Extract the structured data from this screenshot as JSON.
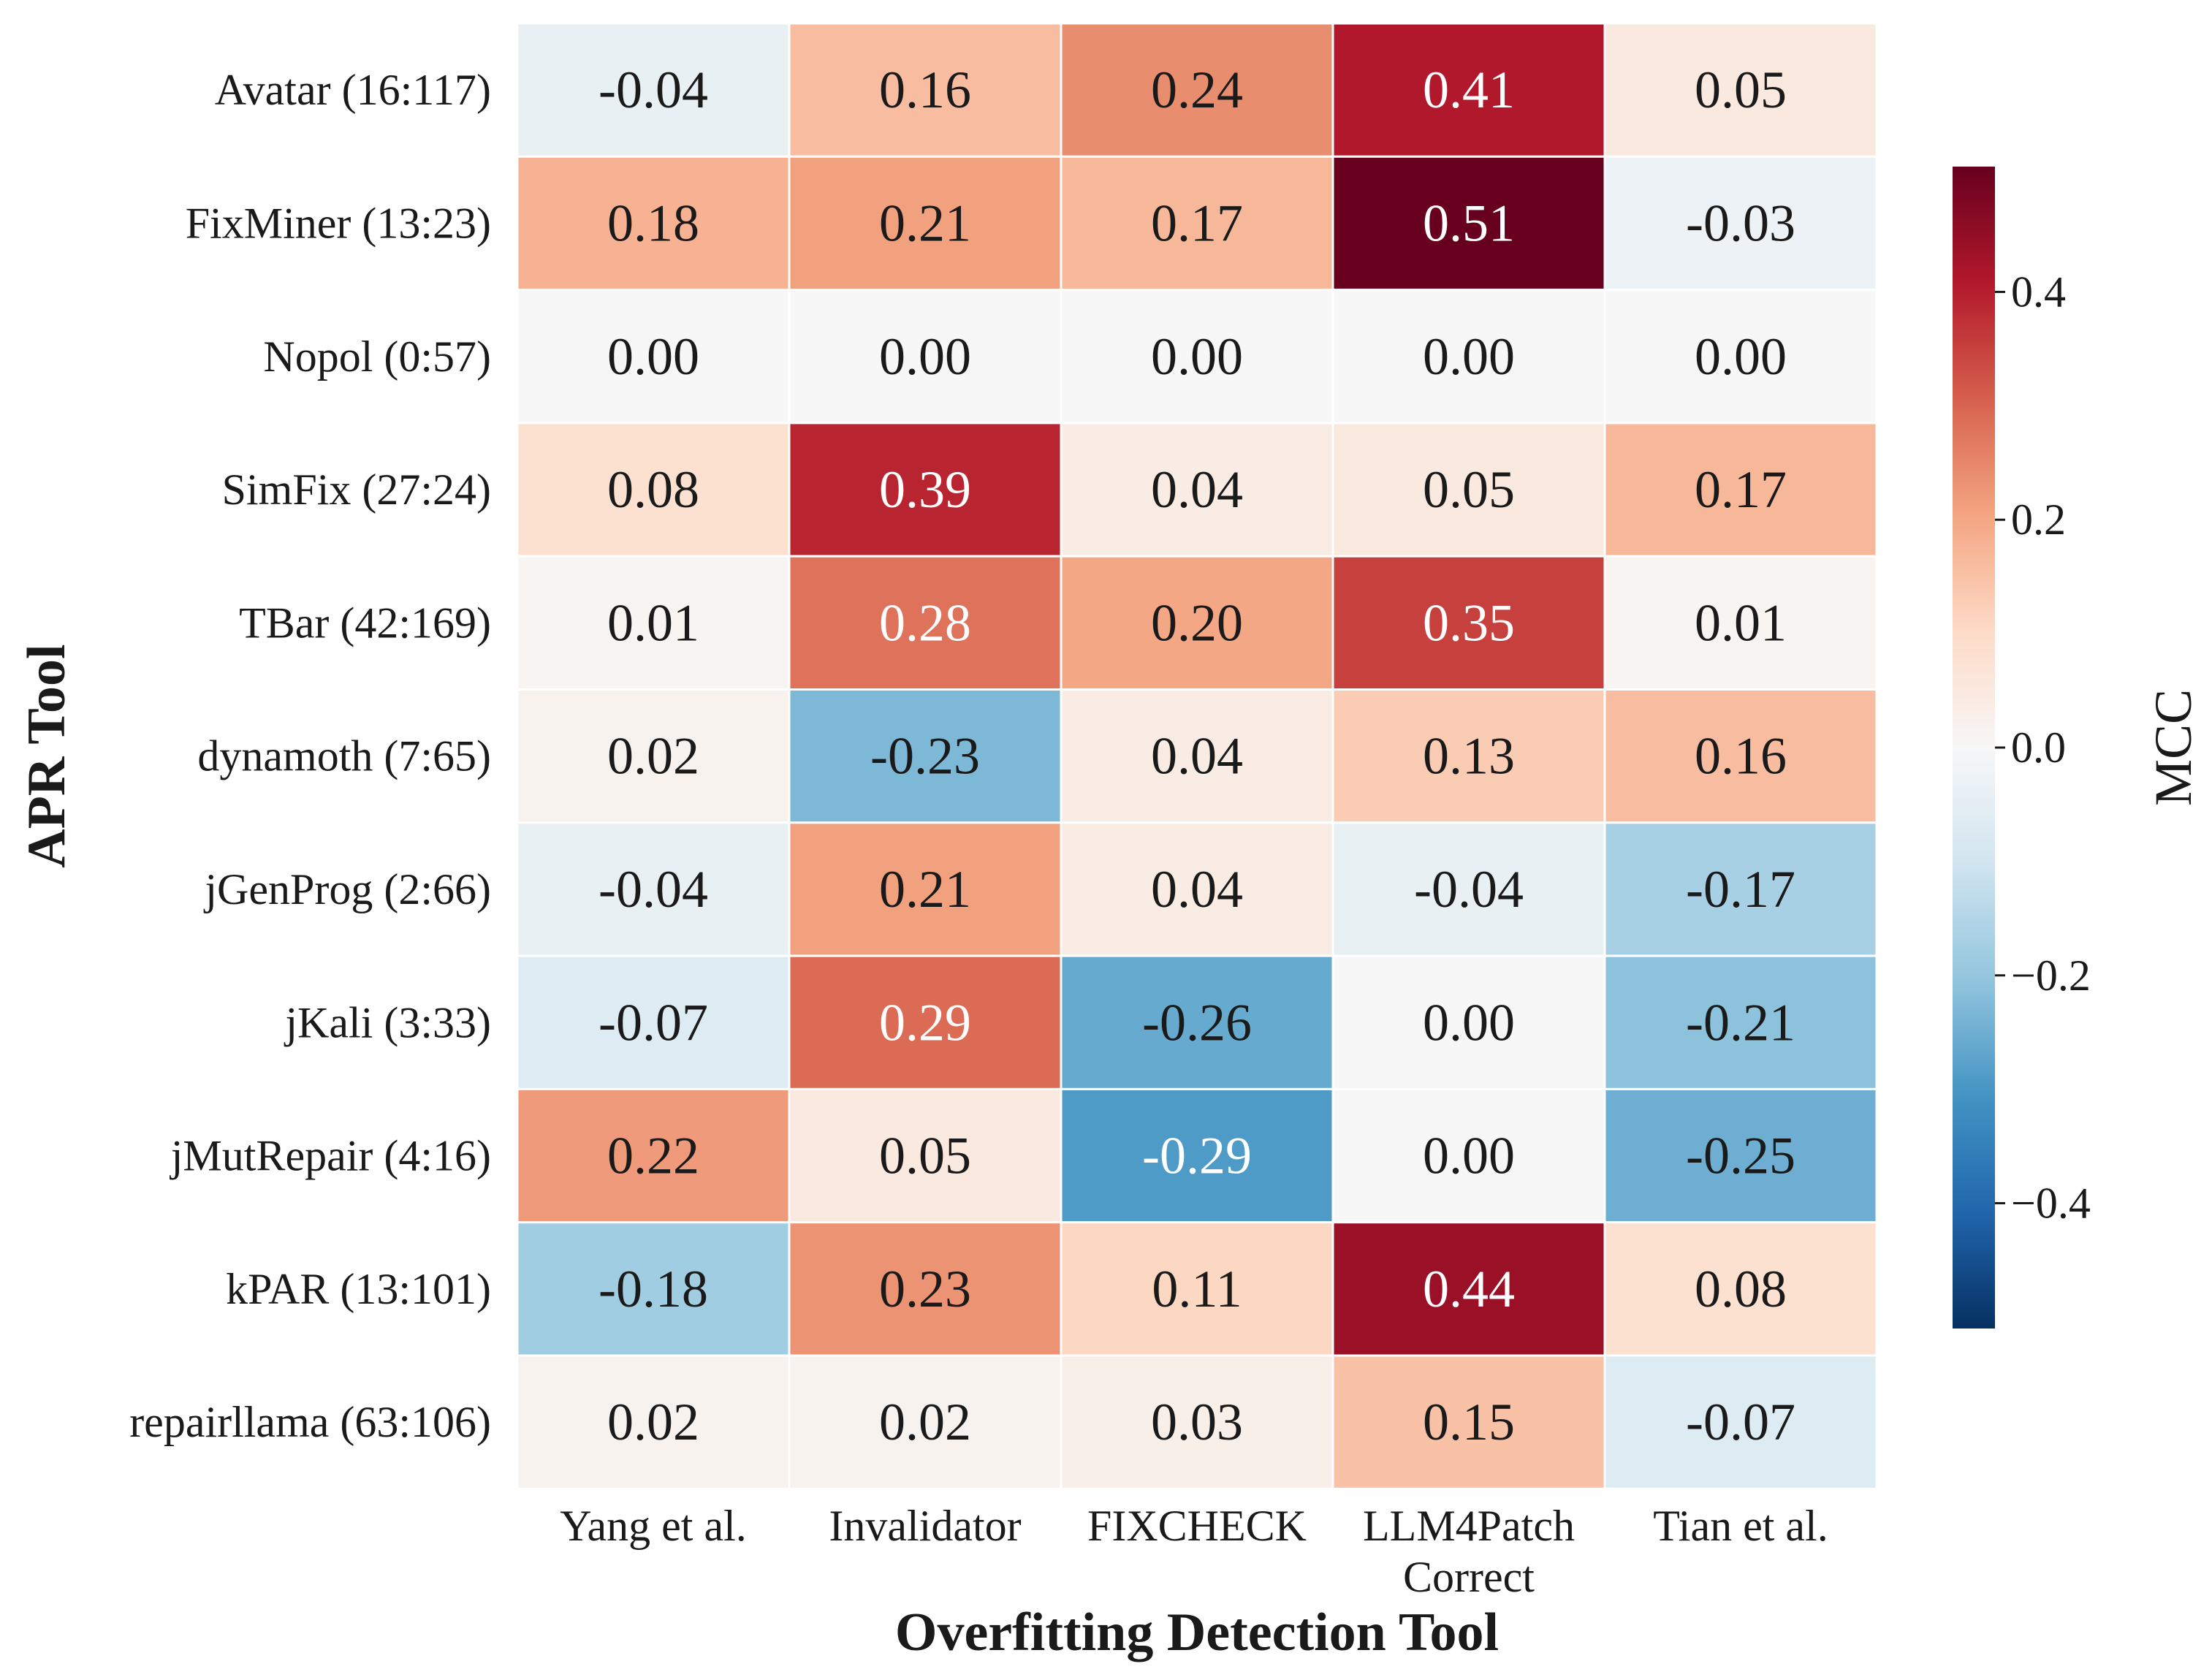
{
  "chart_data": {
    "type": "heatmap",
    "xlabel": "Overfitting Detection Tool",
    "ylabel": "APR Tool",
    "columns": [
      "Yang et al.",
      "Invalidator",
      "FIXCHECK",
      [
        "LLM4Patch",
        "Correct"
      ],
      "Tian et al."
    ],
    "rows": [
      "Avatar (16:117)",
      "FixMiner (13:23)",
      "Nopol (0:57)",
      "SimFix (27:24)",
      "TBar (42:169)",
      "dynamoth (7:65)",
      "jGenProg (2:66)",
      "jKali (3:33)",
      "jMutRepair (4:16)",
      "kPAR (13:101)",
      "repairllama (63:106)"
    ],
    "values": [
      [
        -0.04,
        0.16,
        0.24,
        0.41,
        0.05
      ],
      [
        0.18,
        0.21,
        0.17,
        0.51,
        -0.03
      ],
      [
        0.0,
        0.0,
        0.0,
        0.0,
        0.0
      ],
      [
        0.08,
        0.39,
        0.04,
        0.05,
        0.17
      ],
      [
        0.01,
        0.28,
        0.2,
        0.35,
        0.01
      ],
      [
        0.02,
        -0.23,
        0.04,
        0.13,
        0.16
      ],
      [
        -0.04,
        0.21,
        0.04,
        -0.04,
        -0.17
      ],
      [
        -0.07,
        0.29,
        -0.26,
        0.0,
        -0.21
      ],
      [
        0.22,
        0.05,
        -0.29,
        0.0,
        -0.25
      ],
      [
        -0.18,
        0.23,
        0.11,
        0.44,
        0.08
      ],
      [
        0.02,
        0.02,
        0.03,
        0.15,
        -0.07
      ]
    ],
    "value_labels": [
      [
        "-0.04",
        "0.16",
        "0.24",
        "0.41",
        "0.05"
      ],
      [
        "0.18",
        "0.21",
        "0.17",
        "0.51",
        "-0.03"
      ],
      [
        "0.00",
        "0.00",
        "0.00",
        "0.00",
        "0.00"
      ],
      [
        "0.08",
        "0.39",
        "0.04",
        "0.05",
        "0.17"
      ],
      [
        "0.01",
        "0.28",
        "0.20",
        "0.35",
        "0.01"
      ],
      [
        "0.02",
        "-0.23",
        "0.04",
        "0.13",
        "0.16"
      ],
      [
        "-0.04",
        "0.21",
        "0.04",
        "-0.04",
        "-0.17"
      ],
      [
        "-0.07",
        "0.29",
        "-0.26",
        "0.00",
        "-0.21"
      ],
      [
        "0.22",
        "0.05",
        "-0.29",
        "0.00",
        "-0.25"
      ],
      [
        "-0.18",
        "0.23",
        "0.11",
        "0.44",
        "0.08"
      ],
      [
        "0.02",
        "0.02",
        "0.03",
        "0.15",
        "-0.07"
      ]
    ],
    "colormap": "RdBu_r",
    "color_range": [
      -0.51,
      0.51
    ],
    "colorbar": {
      "title": "MCC",
      "ticks": [
        0.4,
        0.2,
        0.0,
        -0.2,
        -0.4
      ],
      "tick_labels": [
        "0.4",
        "0.2",
        "0.0",
        "−0.2",
        "−0.4"
      ],
      "placement": "right"
    },
    "cell_border_color": "#ffffff"
  }
}
